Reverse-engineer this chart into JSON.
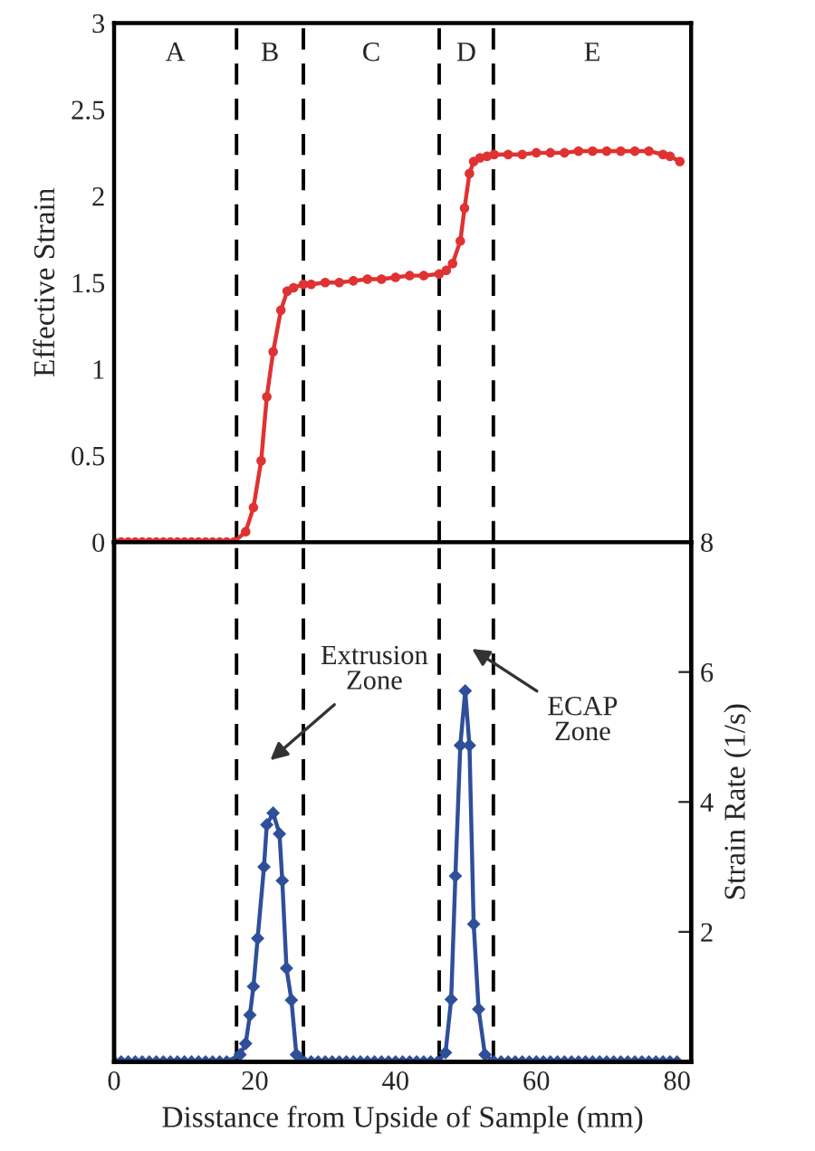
{
  "chart_data": [
    {
      "type": "line",
      "ylabel": "Effective Strain",
      "xlim": [
        0,
        82
      ],
      "xticks": [
        0,
        20,
        40,
        60,
        80
      ],
      "ylim": [
        0,
        3
      ],
      "yticks": [
        0,
        0.5,
        1,
        1.5,
        2,
        2.5,
        3
      ],
      "tick_labels": "y",
      "marker": "circle",
      "annotations": [
        "A",
        "B",
        "C",
        "D",
        "E"
      ],
      "ref_lines": [
        {
          "axis": "x",
          "value": 17.4,
          "color": "#000000",
          "line_style": "dashed"
        },
        {
          "axis": "x",
          "value": 26.9,
          "color": "#000000",
          "line_style": "dashed"
        },
        {
          "axis": "x",
          "value": 46.2,
          "color": "#000000",
          "line_style": "dashed"
        },
        {
          "axis": "x",
          "value": 53.9,
          "color": "#000000",
          "line_style": "dashed"
        }
      ],
      "series": [
        {
          "color": "#e03232",
          "x": [
            0,
            1,
            2,
            3,
            4,
            5,
            6,
            7,
            8,
            9,
            10,
            11,
            12,
            13,
            14,
            15,
            16,
            17,
            18.7,
            19.8,
            20.9,
            21.7,
            22.6,
            23.7,
            24.6,
            25.5,
            26.9,
            28,
            30,
            32,
            34,
            36,
            38,
            40,
            42,
            44,
            46.2,
            47.2,
            48.1,
            49.2,
            49.8,
            50.5,
            51.1,
            52,
            53,
            54,
            56,
            58,
            60,
            62,
            64,
            66,
            68,
            70,
            72,
            74,
            76,
            78,
            79,
            80.4
          ],
          "values": [
            0,
            0,
            0,
            0,
            0,
            0,
            0,
            0,
            0,
            0,
            0,
            0,
            0,
            0,
            0,
            0,
            0,
            0,
            0.06,
            0.2,
            0.47,
            0.84,
            1.1,
            1.34,
            1.45,
            1.47,
            1.49,
            1.49,
            1.5,
            1.5,
            1.51,
            1.52,
            1.52,
            1.53,
            1.54,
            1.54,
            1.55,
            1.57,
            1.61,
            1.74,
            1.93,
            2.13,
            2.2,
            2.22,
            2.23,
            2.24,
            2.24,
            2.24,
            2.25,
            2.25,
            2.25,
            2.26,
            2.26,
            2.26,
            2.26,
            2.26,
            2.26,
            2.24,
            2.23,
            2.2
          ]
        }
      ]
    },
    {
      "type": "line",
      "xlabel": "Disstance from Upside of Sample (mm)",
      "y2label": "Strain Rate (1/s)",
      "xlim": [
        0,
        82
      ],
      "xticks": [
        0,
        20,
        40,
        60,
        80
      ],
      "y2lim": [
        0,
        8
      ],
      "y2ticks": [
        2,
        4,
        6,
        8
      ],
      "marker": "diamond",
      "annotations": [
        "Extrusion\nZone",
        "ECAP\nZone"
      ],
      "ref_lines": [
        {
          "axis": "x",
          "value": 17.4,
          "color": "#000000",
          "line_style": "dashed"
        },
        {
          "axis": "x",
          "value": 26.9,
          "color": "#000000",
          "line_style": "dashed"
        },
        {
          "axis": "x",
          "value": 46.2,
          "color": "#000000",
          "line_style": "dashed"
        },
        {
          "axis": "x",
          "value": 53.9,
          "color": "#000000",
          "line_style": "dashed"
        }
      ],
      "series": [
        {
          "color": "#2f4f9a",
          "axis": "y2",
          "x": [
            0,
            1,
            2,
            3,
            4,
            5,
            6,
            7,
            8,
            9,
            10,
            11,
            12,
            13,
            14,
            15,
            16,
            17.9,
            18.7,
            19.3,
            19.8,
            20.4,
            21.3,
            21.7,
            22.6,
            23.5,
            23.9,
            24.5,
            25.2,
            25.9,
            27,
            28,
            29,
            30,
            31,
            32,
            33,
            34,
            35,
            36,
            37,
            38,
            39,
            40,
            41,
            42,
            43,
            44,
            45,
            46,
            47.1,
            47.9,
            48.5,
            49.2,
            49.9,
            50.5,
            51.1,
            51.8,
            52.7,
            54,
            55,
            56,
            57,
            58,
            59,
            60,
            61,
            62,
            63,
            64,
            65,
            66,
            67,
            68,
            69,
            70,
            71,
            72,
            73,
            74,
            75,
            76,
            77,
            78,
            79,
            80
          ],
          "values": [
            0,
            0,
            0,
            0,
            0,
            0,
            0,
            0,
            0,
            0,
            0,
            0,
            0,
            0,
            0,
            0,
            0,
            0.11,
            0.28,
            0.72,
            1.16,
            1.9,
            3.0,
            3.65,
            3.83,
            3.51,
            2.79,
            1.44,
            0.95,
            0.11,
            0,
            0,
            0,
            0,
            0,
            0,
            0,
            0,
            0,
            0,
            0,
            0,
            0,
            0,
            0,
            0,
            0,
            0,
            0,
            0,
            0.14,
            0.96,
            2.86,
            4.87,
            5.71,
            4.87,
            2.12,
            0.81,
            0.11,
            0,
            0,
            0,
            0,
            0,
            0,
            0,
            0,
            0,
            0,
            0,
            0,
            0,
            0,
            0,
            0,
            0,
            0,
            0,
            0,
            0,
            0,
            0,
            0,
            0,
            0,
            0
          ]
        }
      ]
    }
  ]
}
